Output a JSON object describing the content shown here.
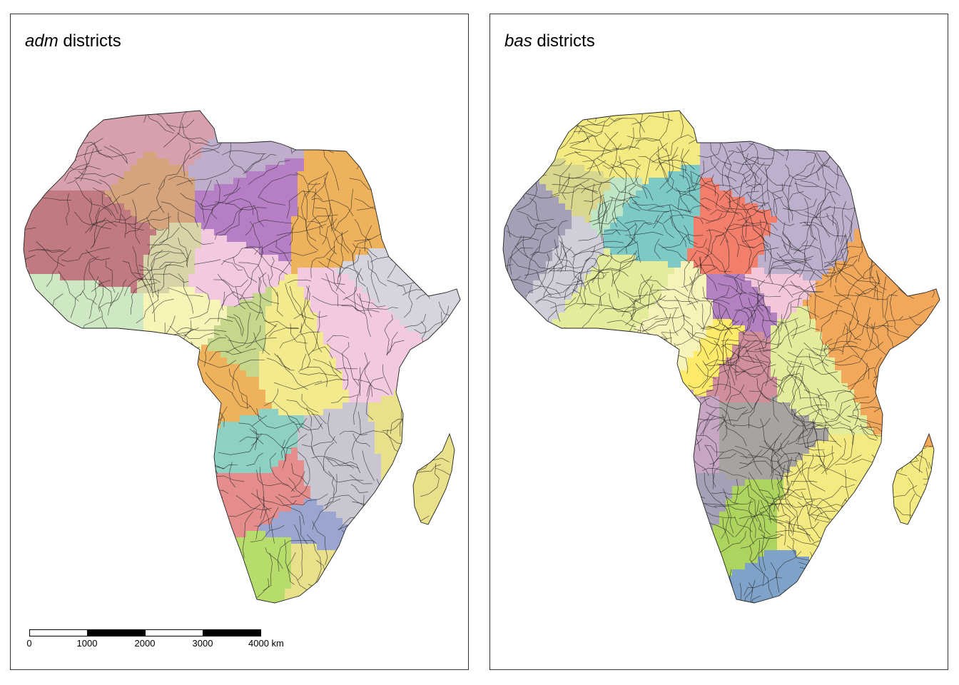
{
  "panels": [
    {
      "title_italic": "adm",
      "title_rest": " districts"
    },
    {
      "title_italic": "bas",
      "title_rest": " districts"
    }
  ],
  "scalebar": {
    "labels": [
      "0",
      "1000",
      "2000",
      "3000",
      "4000 km"
    ]
  },
  "colors": {
    "border": "#222222",
    "adm_palette": [
      "#e8e08a",
      "#d7a0ad",
      "#efb25c",
      "#e58d8d",
      "#f3c9df",
      "#d6d4dc",
      "#bfaecb",
      "#b6dc6c",
      "#d8d4a8",
      "#8ed0c4",
      "#d6a47c",
      "#b67fc5",
      "#f2ea8c",
      "#cfe8c4",
      "#c9c6d2",
      "#f7f4b8",
      "#9aa6cf",
      "#c4d78a",
      "#c07a80"
    ],
    "bas_palette": [
      "#f4ea82",
      "#e4ec9c",
      "#f2a85a",
      "#a6a0b6",
      "#bdb0cc",
      "#7fa2c8",
      "#b381c2",
      "#f47e6c",
      "#acd45e",
      "#bfe6c4",
      "#7cc9c6",
      "#f7f3b8",
      "#d08f9a",
      "#c7a6c4",
      "#f4c6da",
      "#ffea6a",
      "#d9d78e",
      "#cfcfda",
      "#a7a3a0"
    ]
  }
}
